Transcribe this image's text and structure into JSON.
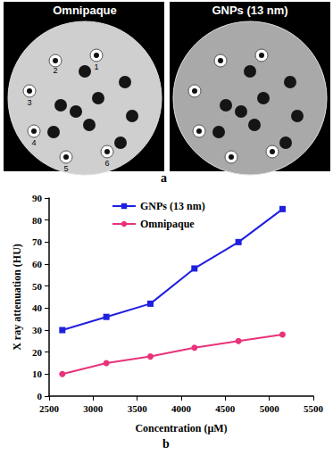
{
  "panel_a": {
    "label": "a",
    "titles": [
      "Omnipaque",
      "GNPs (13 nm)"
    ],
    "well_labels": [
      1,
      2,
      3,
      4,
      5,
      6
    ]
  },
  "panel_b_label": "b",
  "chart_data": {
    "type": "line",
    "x_label": "Concentration (µM)",
    "y_label": "X ray attenuation (HU)",
    "x": [
      2650,
      3150,
      3650,
      4150,
      4650,
      5150
    ],
    "series": [
      {
        "name": "GNPs (13 nm)",
        "color": "#1f1fe0",
        "marker": "square",
        "line_style": "solid",
        "values": [
          30,
          36,
          42,
          58,
          70,
          85
        ]
      },
      {
        "name": "Omnipaque",
        "color": "#e8337a",
        "marker": "circle",
        "line_style": "solid",
        "values": [
          10,
          15,
          18,
          22,
          25,
          28
        ]
      }
    ],
    "xlim": [
      2500,
      5500
    ],
    "xticks": [
      2500,
      3000,
      3500,
      4000,
      4500,
      5000,
      5500
    ],
    "ylim": [
      0,
      90
    ],
    "yticks": [
      0,
      10,
      20,
      30,
      40,
      50,
      60,
      70,
      80,
      90
    ],
    "grid": false,
    "legend": "upper left"
  }
}
